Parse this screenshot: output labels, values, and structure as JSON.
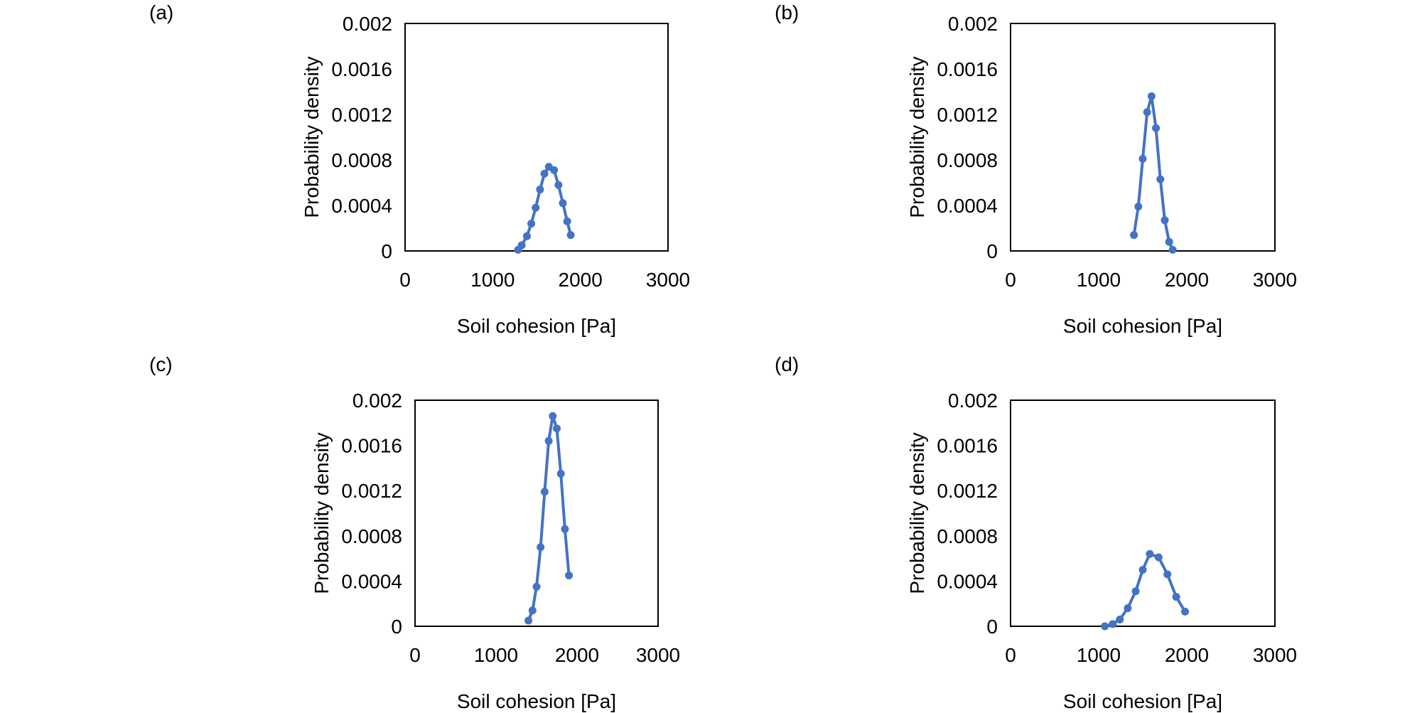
{
  "chart_data": [
    {
      "type": "line",
      "panel_label": "(a)",
      "xlabel": "Soil cohesion [Pa]",
      "ylabel": "Probability  density",
      "xlim": [
        0,
        3000
      ],
      "ylim": [
        0,
        0.002
      ],
      "xticks": [
        "0",
        "1000",
        "2000",
        "3000"
      ],
      "yticks": [
        "0",
        "0.0004",
        "0.0008",
        "0.0012",
        "0.0016",
        "0.002"
      ],
      "grid": false,
      "legend": false,
      "color": "#4472C4",
      "x": [
        1290,
        1330,
        1390,
        1440,
        1490,
        1540,
        1590,
        1640,
        1700,
        1750,
        1800,
        1850,
        1890
      ],
      "y": [
        1e-05,
        5e-05,
        0.00013,
        0.00024,
        0.00038,
        0.00054,
        0.00068,
        0.00074,
        0.00071,
        0.00058,
        0.00042,
        0.00026,
        0.00014
      ]
    },
    {
      "type": "line",
      "panel_label": "(b)",
      "xlabel": "Soil cohesion [Pa]",
      "ylabel": "Probability  density",
      "xlim": [
        0,
        3000
      ],
      "ylim": [
        0,
        0.002
      ],
      "xticks": [
        "0",
        "1000",
        "2000",
        "3000"
      ],
      "yticks": [
        "0",
        "0.0004",
        "0.0008",
        "0.0012",
        "0.0016",
        "0.002"
      ],
      "grid": false,
      "legend": false,
      "color": "#4472C4",
      "x": [
        1400,
        1450,
        1500,
        1550,
        1600,
        1650,
        1700,
        1750,
        1800,
        1840
      ],
      "y": [
        0.00014,
        0.00039,
        0.00081,
        0.00122,
        0.00136,
        0.00108,
        0.00063,
        0.00027,
        8e-05,
        1e-05
      ]
    },
    {
      "type": "line",
      "panel_label": "(c)",
      "xlabel": "Soil cohesion [Pa]",
      "ylabel": "Probability  density",
      "xlim": [
        0,
        3000
      ],
      "ylim": [
        0,
        0.002
      ],
      "xticks": [
        "0",
        "1000",
        "2000",
        "3000"
      ],
      "yticks": [
        "0",
        "0.0004",
        "0.0008",
        "0.0012",
        "0.0016",
        "0.002"
      ],
      "grid": false,
      "legend": false,
      "color": "#4472C4",
      "x": [
        1400,
        1450,
        1500,
        1550,
        1600,
        1650,
        1700,
        1750,
        1800,
        1850,
        1900
      ],
      "y": [
        5e-05,
        0.00014,
        0.00035,
        0.0007,
        0.00119,
        0.00164,
        0.00186,
        0.00175,
        0.00135,
        0.00086,
        0.00045
      ]
    },
    {
      "type": "line",
      "panel_label": "(d)",
      "xlabel": "Soil cohesion [Pa]",
      "ylabel": "Probability  density",
      "xlim": [
        0,
        3000
      ],
      "ylim": [
        0,
        0.002
      ],
      "xticks": [
        "0",
        "1000",
        "2000",
        "3000"
      ],
      "yticks": [
        "0",
        "0.0004",
        "0.0008",
        "0.0012",
        "0.0016",
        "0.002"
      ],
      "grid": false,
      "legend": false,
      "color": "#4472C4",
      "x": [
        1070,
        1160,
        1240,
        1330,
        1420,
        1500,
        1580,
        1680,
        1780,
        1880,
        1980
      ],
      "y": [
        0.0,
        2e-05,
        6e-05,
        0.00016,
        0.00031,
        0.0005,
        0.00064,
        0.00061,
        0.00046,
        0.00026,
        0.00013
      ]
    }
  ]
}
